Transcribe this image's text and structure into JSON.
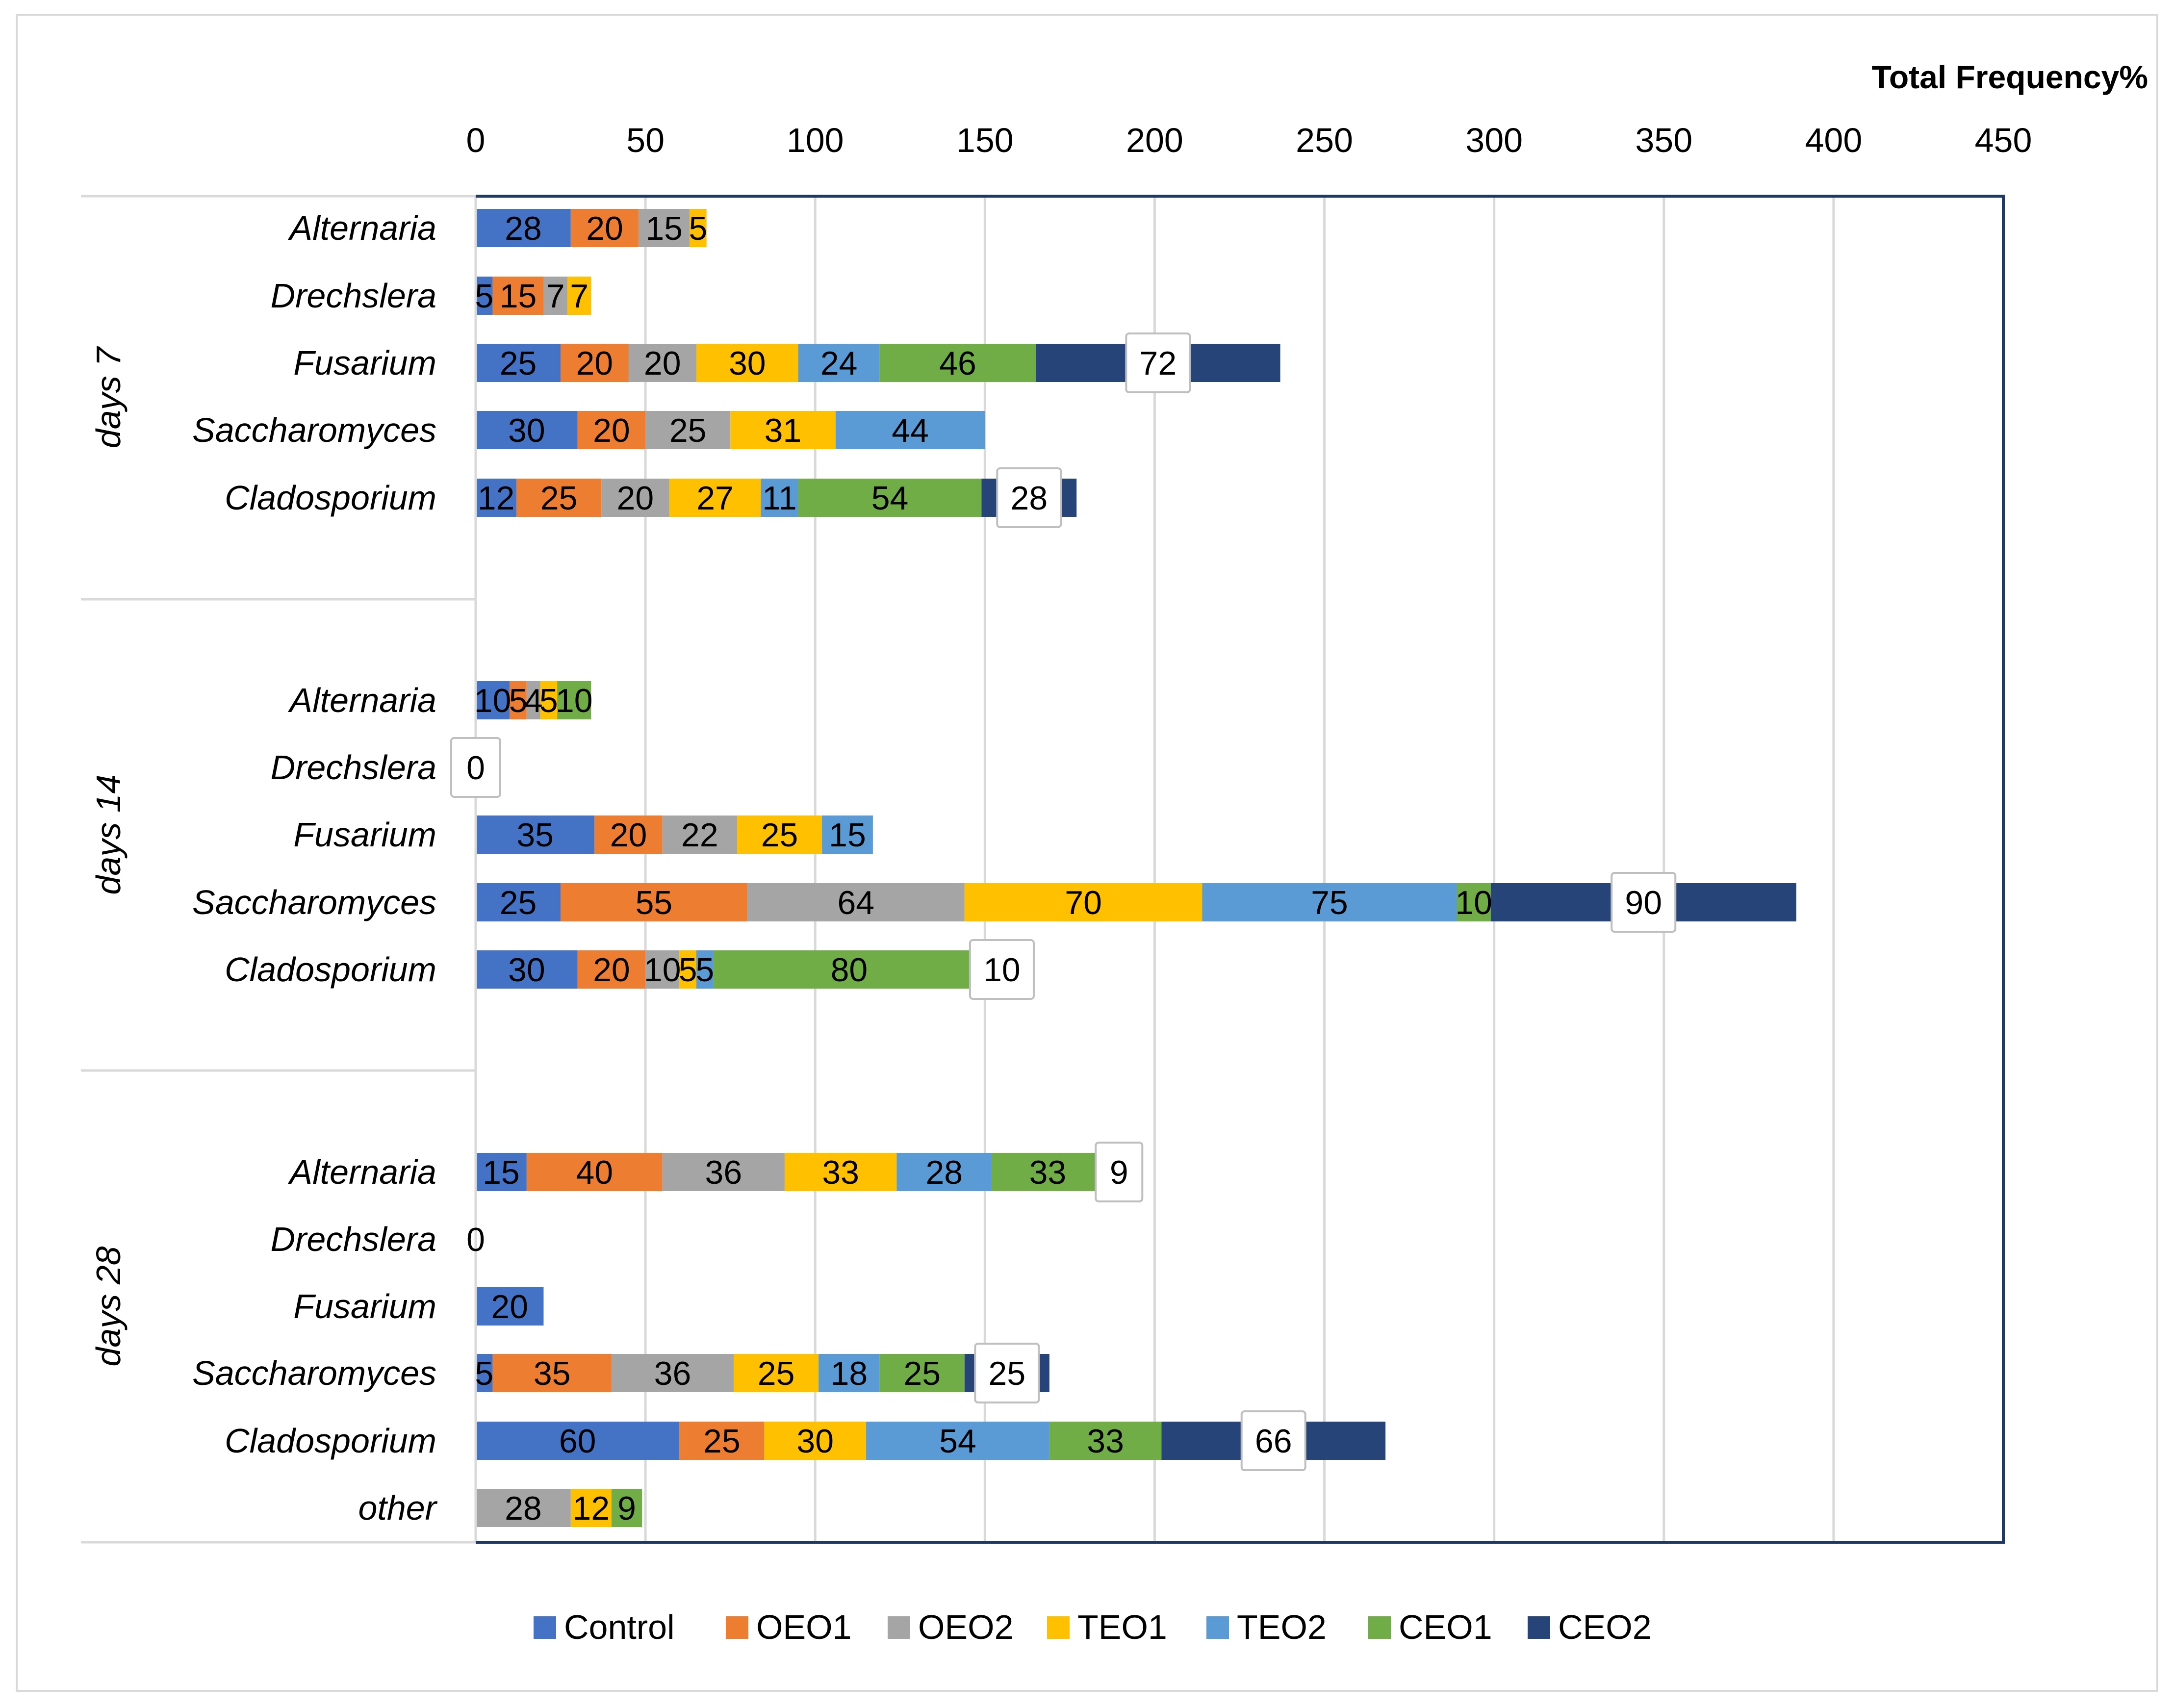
{
  "chart_data": {
    "type": "bar",
    "orientation": "horizontal",
    "stacked": true,
    "title": "",
    "xlabel": "Total Frequency%",
    "ylabel": "",
    "xlim": [
      0,
      450
    ],
    "x_ticks": [
      0,
      50,
      100,
      150,
      200,
      250,
      300,
      350,
      400,
      450
    ],
    "x_tick_labels": [
      "0",
      "50",
      "100",
      "150",
      "200",
      "250",
      "300",
      "350",
      "400",
      "450"
    ],
    "legend_position": "bottom",
    "grid": true,
    "colors": {
      "Control": "#4472c4",
      "OEO1": "#ed7d31",
      "OEO2": "#a5a5a5",
      "TEO1": "#ffc000",
      "TEO2": "#5b9bd5",
      "CEO1": "#70ad47",
      "CEO2": "#264478"
    },
    "series_names": [
      "Control",
      "OEO1",
      "OEO2",
      "TEO1",
      "TEO2",
      "CEO1",
      "CEO2"
    ],
    "groups": [
      {
        "name": "days 7",
        "rows": [
          {
            "category": "Alternaria",
            "values": [
              28,
              20,
              15,
              5,
              0,
              0,
              0
            ]
          },
          {
            "category": "Drechslera",
            "values": [
              5,
              15,
              7,
              7,
              0,
              0,
              0
            ]
          },
          {
            "category": "Fusarium",
            "values": [
              25,
              20,
              20,
              30,
              24,
              46,
              72
            ]
          },
          {
            "category": "Saccharomyces",
            "values": [
              30,
              20,
              25,
              31,
              44,
              0,
              0
            ]
          },
          {
            "category": "Cladosporium",
            "values": [
              12,
              25,
              20,
              27,
              11,
              54,
              28
            ]
          }
        ]
      },
      {
        "name": "days 14",
        "rows": [
          {
            "category": "Alternaria",
            "values": [
              10,
              5,
              4,
              5,
              0,
              10,
              0
            ]
          },
          {
            "category": "Drechslera",
            "values": [
              0,
              0,
              0,
              0,
              0,
              0,
              0
            ]
          },
          {
            "category": "Fusarium",
            "values": [
              35,
              20,
              22,
              25,
              15,
              0,
              0
            ]
          },
          {
            "category": "Saccharomyces",
            "values": [
              25,
              55,
              64,
              70,
              75,
              10,
              90
            ]
          },
          {
            "category": "Cladosporium",
            "values": [
              30,
              20,
              10,
              5,
              5,
              80,
              10
            ]
          }
        ]
      },
      {
        "name": "days 28",
        "rows": [
          {
            "category": "Alternaria",
            "values": [
              15,
              40,
              36,
              33,
              28,
              33,
              9
            ]
          },
          {
            "category": "Drechslera",
            "values": [
              0,
              0,
              0,
              0,
              0,
              0,
              0
            ]
          },
          {
            "category": "Fusarium",
            "values": [
              20,
              0,
              0,
              0,
              0,
              0,
              0
            ]
          },
          {
            "category": "Saccharomyces",
            "values": [
              5,
              35,
              36,
              25,
              18,
              25,
              25
            ]
          },
          {
            "category": "Cladosporium",
            "values": [
              60,
              25,
              0,
              30,
              54,
              33,
              66
            ]
          },
          {
            "category": "other",
            "values": [
              0,
              0,
              28,
              12,
              0,
              9,
              0
            ]
          }
        ]
      }
    ],
    "zero_labels": [
      {
        "group": 1,
        "row": 1,
        "text": "0"
      },
      {
        "group": 2,
        "row": 1,
        "text": "0"
      }
    ]
  }
}
